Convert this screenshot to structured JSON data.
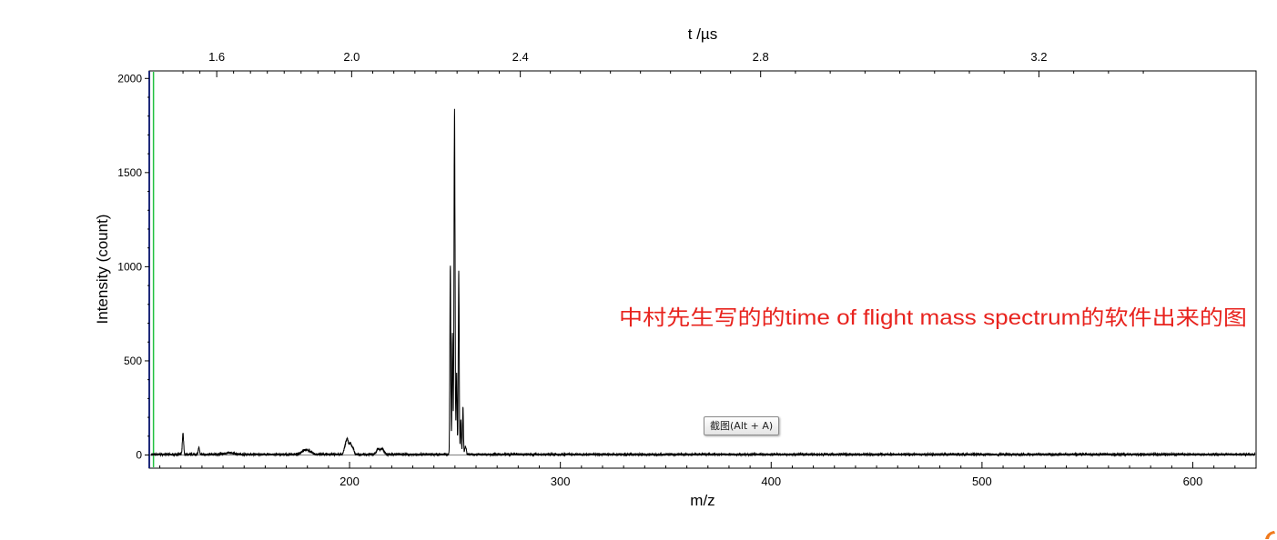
{
  "chart_data": {
    "type": "line",
    "xlabel": "m/z",
    "x2label": "t /µs",
    "ylabel": "Intensity (count)",
    "xlim": [
      105,
      630
    ],
    "ylim": [
      -70,
      2040
    ],
    "x_ticks": [
      200,
      300,
      400,
      500,
      600
    ],
    "x_tick_labels": [
      "200",
      "300",
      "400",
      "500",
      "600"
    ],
    "x2_ticks": [
      1.6,
      2.0,
      2.4,
      2.8,
      3.2
    ],
    "x2_tick_labels": [
      "1.6",
      "2.0",
      "2.4",
      "2.8",
      "3.2"
    ],
    "x2_tick_positions_mz": [
      137,
      201,
      281,
      395,
      527
    ],
    "y_ticks": [
      0,
      500,
      1000,
      1500,
      2000
    ],
    "y_tick_labels": [
      "0",
      "500",
      "1000",
      "1500",
      "2000"
    ],
    "marker_line_x": 107,
    "series": [
      {
        "color": "#000000",
        "peaks": [
          {
            "x": 121.0,
            "y": 110,
            "w": 0.3
          },
          {
            "x": 128.5,
            "y": 35,
            "w": 0.3
          },
          {
            "x": 143.0,
            "y": 8,
            "w": 2.5
          },
          {
            "x": 178.5,
            "y": 22,
            "w": 1.4
          },
          {
            "x": 181.0,
            "y": 15,
            "w": 1.2
          },
          {
            "x": 198.0,
            "y": 45,
            "w": 0.6
          },
          {
            "x": 199.0,
            "y": 70,
            "w": 0.5
          },
          {
            "x": 200.3,
            "y": 55,
            "w": 0.5
          },
          {
            "x": 201.5,
            "y": 35,
            "w": 0.6
          },
          {
            "x": 213.5,
            "y": 28,
            "w": 0.8
          },
          {
            "x": 215.5,
            "y": 30,
            "w": 0.8
          },
          {
            "x": 247.8,
            "y": 1000,
            "w": 0.22
          },
          {
            "x": 248.8,
            "y": 650,
            "w": 0.22
          },
          {
            "x": 249.8,
            "y": 1830,
            "w": 0.25
          },
          {
            "x": 250.8,
            "y": 430,
            "w": 0.22
          },
          {
            "x": 251.8,
            "y": 980,
            "w": 0.22
          },
          {
            "x": 252.8,
            "y": 180,
            "w": 0.22
          },
          {
            "x": 253.8,
            "y": 250,
            "w": 0.22
          },
          {
            "x": 255.0,
            "y": 40,
            "w": 0.4
          }
        ]
      }
    ],
    "annotations": [
      {
        "text": "中村先生写的的time of flight mass spectrum的软件出来的图",
        "color": "#e8231e"
      }
    ]
  },
  "tooltip": {
    "label": "截图(Alt + A)"
  }
}
